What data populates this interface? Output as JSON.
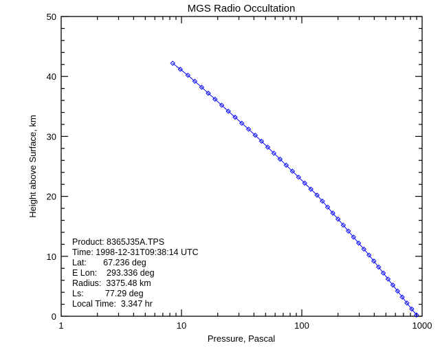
{
  "chart_data": {
    "type": "line",
    "title": "MGS Radio Occultation",
    "xlabel": "Pressure, Pascal",
    "ylabel": "Height above Surface, km",
    "xscale": "log",
    "xlim": [
      1,
      1000
    ],
    "ylim": [
      0,
      50
    ],
    "xticks": [
      "1",
      "10",
      "100",
      "1000"
    ],
    "yticks": [
      "0",
      "10",
      "20",
      "30",
      "40",
      "50"
    ],
    "grid": false,
    "marker": "diamond",
    "line_color": "#0000ff",
    "series": [
      {
        "x": [
          8.45,
          9.77,
          11.3,
          12.9,
          14.7,
          16.7,
          19.0,
          21.6,
          24.5,
          27.9,
          31.7,
          36.1,
          41.0,
          46.2,
          52.1,
          58.6,
          65.9,
          74.2,
          83.5,
          94.0,
          105.7,
          118.9,
          133.9,
          148.4,
          164,
          181,
          200,
          221,
          244,
          269,
          297,
          328,
          362,
          397,
          435,
          476,
          521,
          571,
          625,
          684,
          748,
          820,
          898
        ],
        "y": [
          42.2,
          41.2,
          40.2,
          39.2,
          38.2,
          37.2,
          36.2,
          35.2,
          34.2,
          33.2,
          32.2,
          31.2,
          30.2,
          29.2,
          28.2,
          27.2,
          26.2,
          25.2,
          24.2,
          23.2,
          22.2,
          21.2,
          20.2,
          19.2,
          18.2,
          17.2,
          16.2,
          15.2,
          14.2,
          13.2,
          12.2,
          11.2,
          10.2,
          9.2,
          8.2,
          7.2,
          6.2,
          5.2,
          4.2,
          3.2,
          2.2,
          1.2,
          0.2
        ]
      }
    ],
    "annotations": [
      "Product: 8365J35A.TPS",
      "Time: 1998-12-31T09:38:14 UTC",
      "Lat:       67.236 deg",
      "E Lon:    293.336 deg",
      "Radius:  3375.48 km",
      "Ls:         77.29 deg",
      "Local Time:  3.347 hr"
    ]
  }
}
